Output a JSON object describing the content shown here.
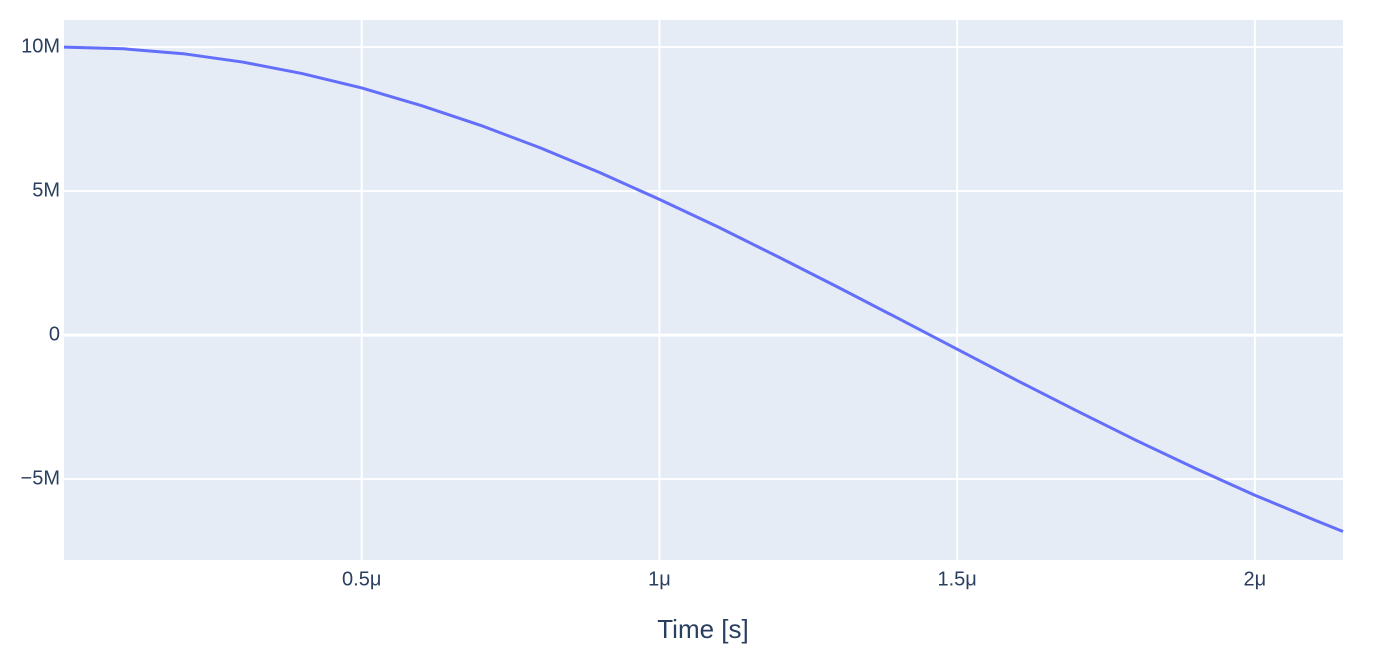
{
  "chart_data": {
    "type": "line",
    "x_label": "Time [s]",
    "x": [
      0,
      1e-07,
      2e-07,
      3e-07,
      4e-07,
      5e-07,
      6e-07,
      7e-07,
      8e-07,
      9e-07,
      1e-06,
      1.1e-06,
      1.2e-06,
      1.3e-06,
      1.4e-06,
      1.5e-06,
      1.6e-06,
      1.7e-06,
      1.8e-06,
      1.9e-06,
      2e-06,
      2.1e-06,
      2.148e-06
    ],
    "series": [
      {
        "color": "#636efa",
        "values": [
          10000000,
          9940000,
          9770000,
          9480000,
          9080000,
          8580000,
          7970000,
          7280000,
          6500000,
          5640000,
          4710000,
          3740000,
          2710000,
          1660000,
          590000,
          -490000,
          -1570000,
          -2620000,
          -3650000,
          -4630000,
          -5560000,
          -6420000,
          -6820000
        ]
      }
    ],
    "xlim": [
      0,
      2.148e-06
    ],
    "ylim": [
      -7810000,
      10940000
    ],
    "xticks": [
      {
        "value": 5e-07,
        "label": "0.5μ"
      },
      {
        "value": 1e-06,
        "label": "1μ"
      },
      {
        "value": 1.5e-06,
        "label": "1.5μ"
      },
      {
        "value": 2e-06,
        "label": "2μ"
      }
    ],
    "yticks": [
      {
        "value": -5000000,
        "label": "−5M"
      },
      0,
      {
        "value": 5000000,
        "label": "5M"
      },
      {
        "value": 10000000,
        "label": "10M"
      }
    ],
    "grid": true,
    "background": "#e5ecf6"
  }
}
